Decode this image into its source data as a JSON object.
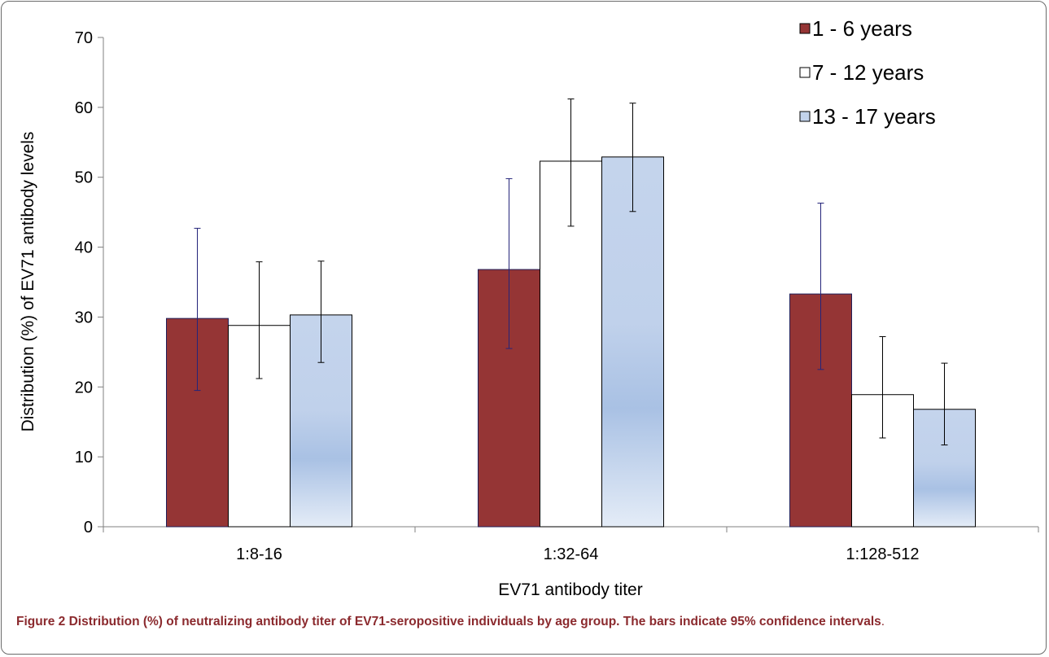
{
  "chart_data": {
    "type": "bar",
    "xlabel": "EV71 antibody titer",
    "ylabel": "Distribution (%) of EV71 antibody levels",
    "ylim": [
      0,
      70
    ],
    "yticks": [
      0,
      10,
      20,
      30,
      40,
      50,
      60,
      70
    ],
    "grid": false,
    "legend_position": "top-right",
    "categories": [
      "1:8-16",
      "1:32-64",
      "1:128-512"
    ],
    "series": [
      {
        "name": "1 - 6 years",
        "color": "#953535",
        "values": [
          29.8,
          36.8,
          33.3
        ],
        "ci_low": [
          19.5,
          25.5,
          22.5
        ],
        "ci_high": [
          42.7,
          49.8,
          46.3
        ],
        "error_color": "#24247a"
      },
      {
        "name": "7 - 12 years",
        "color": "#ffffff",
        "values": [
          28.8,
          52.3,
          18.9
        ],
        "ci_low": [
          21.2,
          43.0,
          12.7
        ],
        "ci_high": [
          37.9,
          61.2,
          27.2
        ],
        "error_color": "#000000"
      },
      {
        "name": "13 - 17 years",
        "color": "#c2d3ec",
        "values": [
          30.3,
          52.9,
          16.8
        ],
        "ci_low": [
          23.5,
          45.1,
          11.7
        ],
        "ci_high": [
          38.0,
          60.6,
          23.4
        ],
        "error_color": "#000000"
      }
    ]
  },
  "caption": {
    "lead": "Figure 2 Distribution (%) of neutralizing antibody titer of EV71-seropositive individuals by age group. The bars indicate 95% confidence intervals",
    "tail": "."
  }
}
